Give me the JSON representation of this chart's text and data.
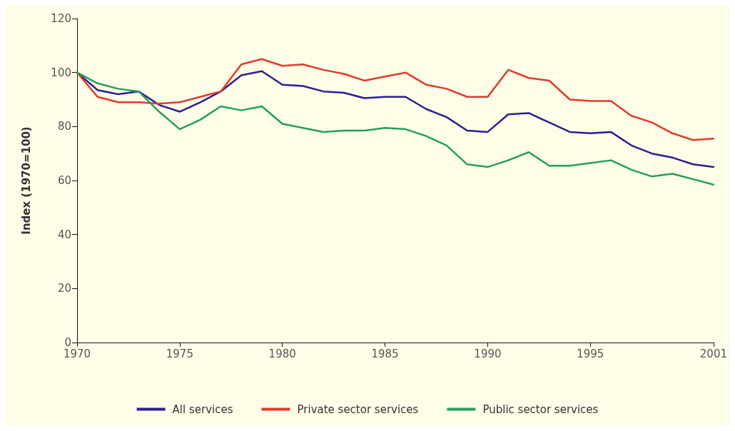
{
  "chart_data": {
    "type": "line",
    "ylabel": "Index (1970=100)",
    "x": [
      1970,
      1971,
      1972,
      1973,
      1974,
      1975,
      1976,
      1977,
      1978,
      1979,
      1980,
      1981,
      1982,
      1983,
      1984,
      1985,
      1986,
      1987,
      1988,
      1989,
      1990,
      1991,
      1992,
      1993,
      1994,
      1995,
      1996,
      1997,
      1998,
      1999,
      2000,
      2001
    ],
    "series": [
      {
        "name": "All services",
        "color": "#2a1f8f",
        "values": [
          100,
          93.5,
          92,
          93,
          88,
          85.5,
          89,
          93,
          99,
          100.5,
          95.5,
          95,
          93,
          92.5,
          90.5,
          91,
          91,
          86.5,
          83.5,
          78.5,
          78,
          84.5,
          85,
          81.5,
          78,
          77.5,
          78,
          73,
          70,
          68.5,
          66,
          65
        ]
      },
      {
        "name": "Private sector services",
        "color": "#e03a2f",
        "values": [
          100,
          91,
          89,
          89,
          88.5,
          89,
          91,
          93,
          103,
          105,
          102.5,
          103,
          101,
          99.5,
          97,
          98.5,
          100,
          95.5,
          94,
          91,
          91,
          101,
          98,
          97,
          90,
          89.5,
          89.5,
          84,
          81.5,
          77.5,
          75,
          75.5
        ]
      },
      {
        "name": "Public sector services",
        "color": "#23a05a",
        "values": [
          100,
          96,
          94,
          93,
          85.5,
          79,
          82.5,
          87.5,
          86,
          87.5,
          81,
          79.5,
          78,
          78.5,
          78.5,
          79.5,
          79,
          76.5,
          73,
          66,
          65,
          67.5,
          70.5,
          65.5,
          65.5,
          66.5,
          67.5,
          64,
          61.5,
          62.5,
          60.5,
          58.5
        ]
      }
    ],
    "xlim": [
      1970,
      2001
    ],
    "xticks": [
      1970,
      1975,
      1980,
      1985,
      1990,
      1995,
      2001
    ],
    "ylim": [
      0,
      120
    ],
    "yticks": [
      0,
      20,
      40,
      60,
      80,
      100,
      120
    ],
    "grid": false,
    "legend": "bottom",
    "marker": "none",
    "line_style": "solid"
  }
}
